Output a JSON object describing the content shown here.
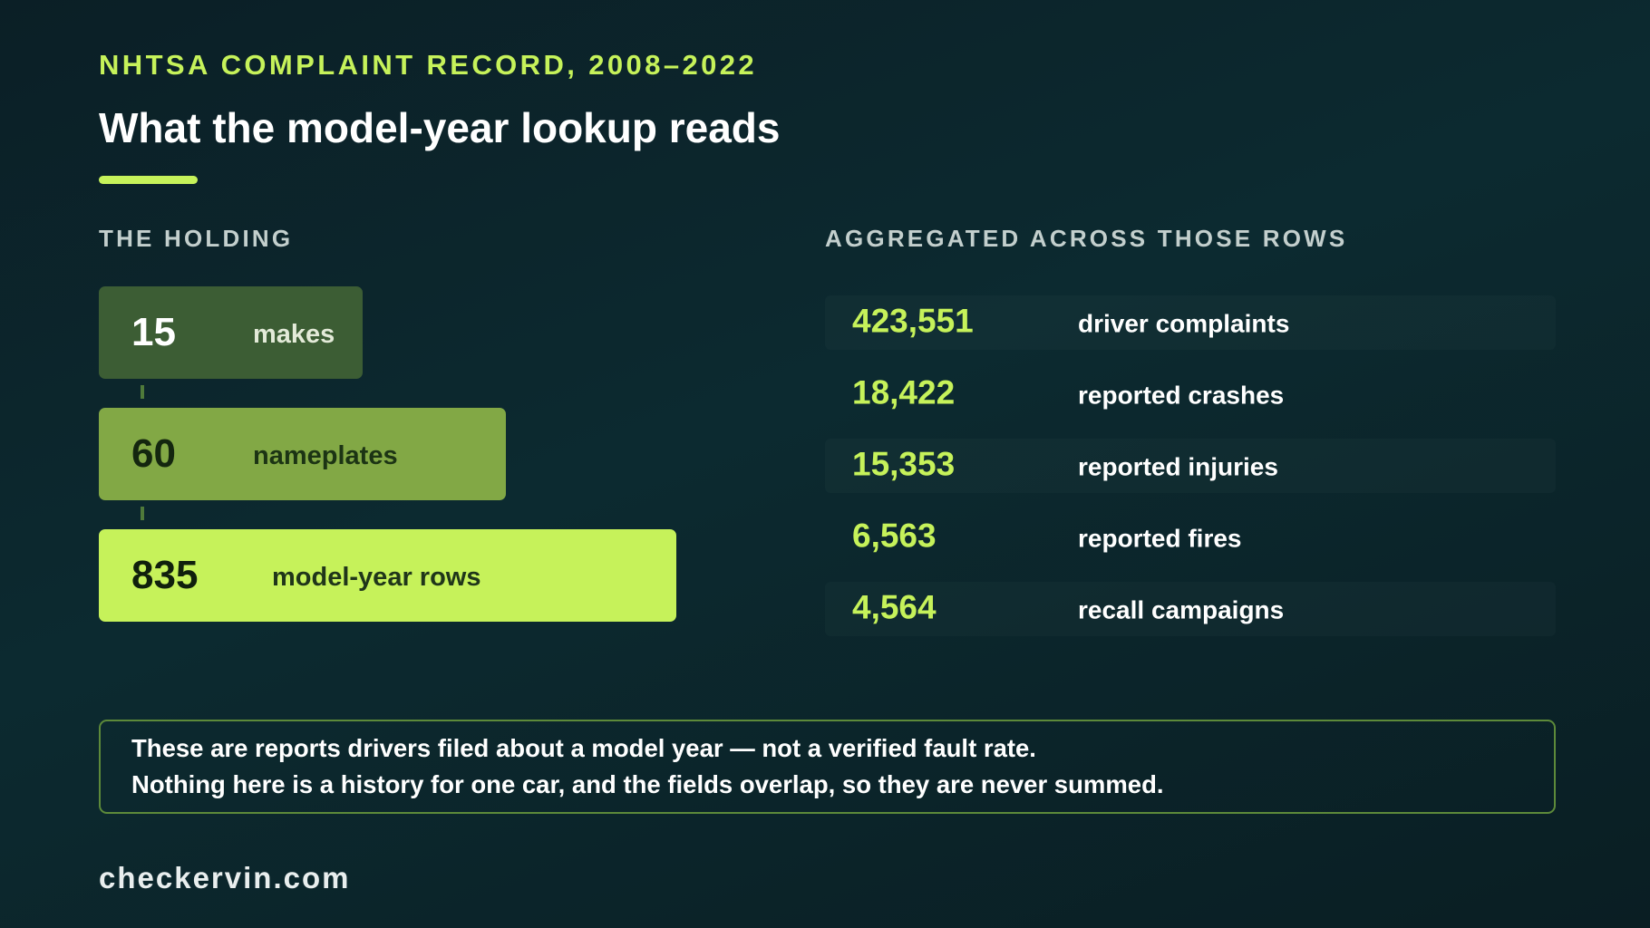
{
  "header": {
    "kicker": "NHTSA COMPLAINT RECORD, 2008–2022",
    "title": "What the model-year lookup reads"
  },
  "holding": {
    "heading": "THE HOLDING",
    "tiers": [
      {
        "value": "15",
        "label": "makes"
      },
      {
        "value": "60",
        "label": "nameplates"
      },
      {
        "value": "835",
        "label": "model-year rows"
      }
    ]
  },
  "aggregates": {
    "heading": "AGGREGATED ACROSS THOSE ROWS",
    "rows": [
      {
        "value": "423,551",
        "label": "driver complaints"
      },
      {
        "value": "18,422",
        "label": "reported crashes"
      },
      {
        "value": "15,353",
        "label": "reported injuries"
      },
      {
        "value": "6,563",
        "label": "reported fires"
      },
      {
        "value": "4,564",
        "label": "recall campaigns"
      }
    ]
  },
  "note": {
    "lines": [
      "These are reports drivers filed about a model year — not a verified fault rate.",
      "Nothing here is a history for one car, and the fields overlap, so they are never summed."
    ]
  },
  "footer": {
    "site": "checkervin.com"
  }
}
